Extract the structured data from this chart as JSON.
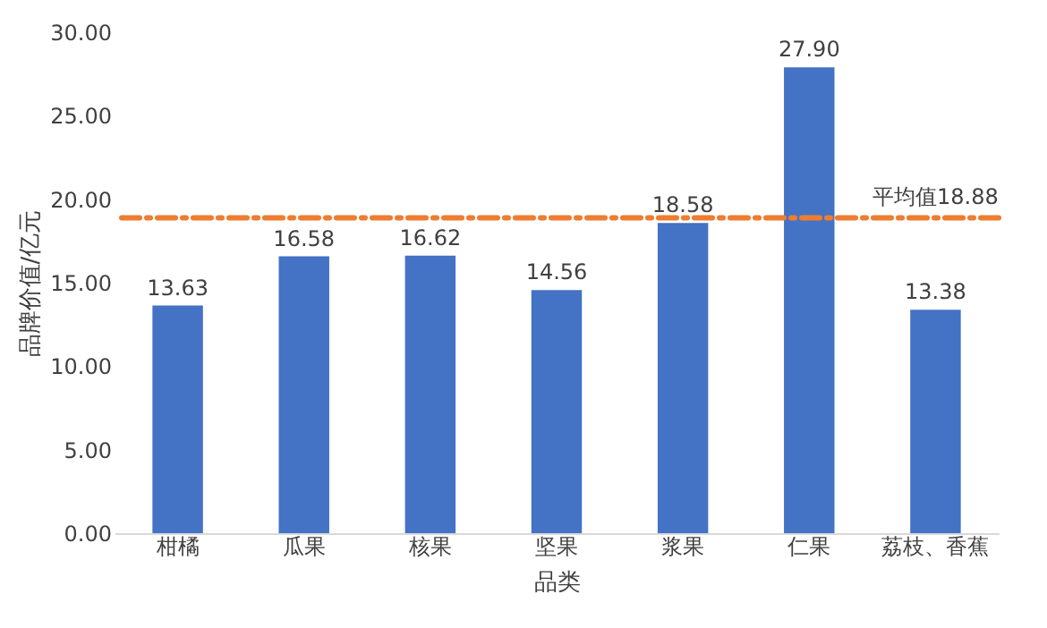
{
  "chart_data": {
    "type": "bar",
    "xlabel": "品类",
    "ylabel": "品牌价值/亿元",
    "categories": [
      "柑橘",
      "瓜果",
      "核果",
      "坚果",
      "浆果",
      "仁果",
      "荔枝、香蕉"
    ],
    "values": [
      13.63,
      16.58,
      16.62,
      14.56,
      18.58,
      27.9,
      13.38
    ],
    "value_labels": [
      "13.63",
      "16.58",
      "16.62",
      "14.56",
      "18.58",
      "27.90",
      "13.38"
    ],
    "color": "#4472c4",
    "ylim": [
      0,
      30
    ],
    "yticks": [
      {
        "value": 0,
        "label": "0.00"
      },
      {
        "value": 5,
        "label": "5.00"
      },
      {
        "value": 10,
        "label": "10.00"
      },
      {
        "value": 15,
        "label": "15.00"
      },
      {
        "value": 20,
        "label": "20.00"
      },
      {
        "value": 25,
        "label": "25.00"
      },
      {
        "value": 30,
        "label": "30.00"
      }
    ],
    "ref_lines": [
      {
        "axis": "y",
        "value": 18.88,
        "label": "平均值18.88",
        "color": "#ed7d31",
        "line_style": "dashed"
      }
    ],
    "grid": false
  }
}
